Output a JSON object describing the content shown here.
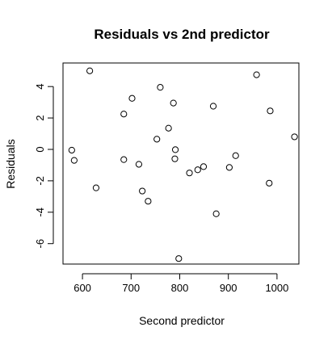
{
  "chart_data": {
    "type": "scatter",
    "title": "Residuals vs 2nd predictor",
    "xlabel": "Second predictor",
    "ylabel": "Residuals",
    "xlim": [
      560,
      1045
    ],
    "ylim": [
      -7.3,
      5.5
    ],
    "x_ticks": [
      600,
      700,
      800,
      900,
      1000
    ],
    "x_tick_labels": [
      "600",
      "700",
      "800",
      "900",
      "1000"
    ],
    "y_ticks": [
      -6,
      -4,
      -2,
      0,
      2,
      4
    ],
    "y_tick_labels": [
      "-6",
      "-4",
      "-2",
      "0",
      "2",
      "4"
    ],
    "grid": false,
    "marker": "open-circle",
    "point_color": "#000000",
    "points": [
      {
        "x": 615,
        "y": 5.0
      },
      {
        "x": 578,
        "y": -0.05
      },
      {
        "x": 583,
        "y": -0.7
      },
      {
        "x": 628,
        "y": -2.45
      },
      {
        "x": 685,
        "y": 2.25
      },
      {
        "x": 685,
        "y": -0.65
      },
      {
        "x": 702,
        "y": 3.25
      },
      {
        "x": 716,
        "y": -0.95
      },
      {
        "x": 723,
        "y": -2.65
      },
      {
        "x": 735,
        "y": -3.3
      },
      {
        "x": 753,
        "y": 0.65
      },
      {
        "x": 760,
        "y": 3.95
      },
      {
        "x": 777,
        "y": 1.35
      },
      {
        "x": 787,
        "y": 2.95
      },
      {
        "x": 790,
        "y": -0.6
      },
      {
        "x": 791,
        "y": -0.02
      },
      {
        "x": 798,
        "y": -6.95
      },
      {
        "x": 820,
        "y": -1.5
      },
      {
        "x": 837,
        "y": -1.3
      },
      {
        "x": 849,
        "y": -1.1
      },
      {
        "x": 869,
        "y": 2.75
      },
      {
        "x": 875,
        "y": -4.1
      },
      {
        "x": 902,
        "y": -1.15
      },
      {
        "x": 915,
        "y": -0.4
      },
      {
        "x": 958,
        "y": 4.75
      },
      {
        "x": 984,
        "y": -2.15
      },
      {
        "x": 986,
        "y": 2.45
      },
      {
        "x": 1036,
        "y": 0.8
      }
    ]
  }
}
